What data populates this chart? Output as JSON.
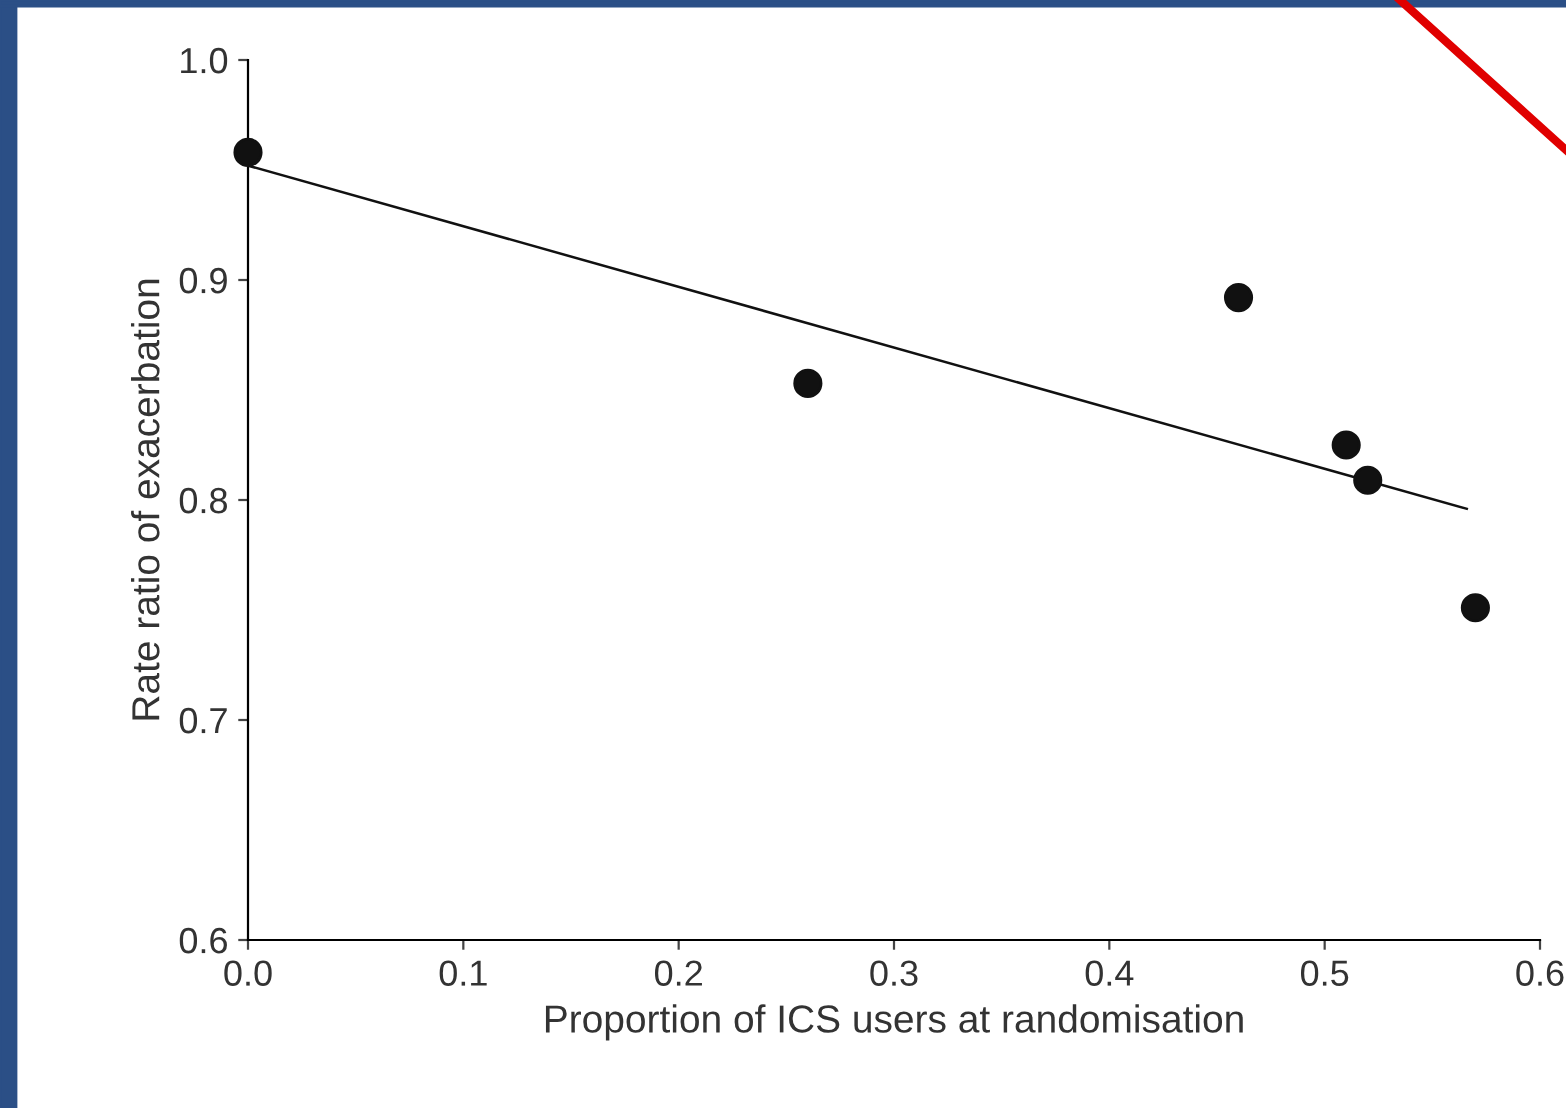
{
  "chart_data": {
    "type": "scatter",
    "xlabel": "Proportion of ICS users at randomisation",
    "ylabel": "Rate ratio of exacerbation",
    "series": [
      {
        "color": "#111111",
        "marker": "circle",
        "x": [
          0.0,
          0.26,
          0.46,
          0.51,
          0.52,
          0.57
        ],
        "values": [
          0.958,
          0.853,
          0.892,
          0.825,
          0.809,
          0.751
        ]
      },
      {
        "type": "line",
        "color": "#111111",
        "marker": "none",
        "line_style": "solid",
        "x": [
          0.0,
          0.566
        ],
        "values": [
          0.952,
          0.796
        ]
      }
    ],
    "xlim": [
      0,
      0.6
    ],
    "ylim": [
      0.6,
      1.0
    ],
    "xticks": [
      {
        "value": 0,
        "label": "0.0"
      },
      0.1,
      0.2,
      0.3,
      0.4,
      0.5,
      0.6
    ],
    "yticks": [
      {
        "value": 0.6,
        "label": "0.6"
      },
      0.7,
      0.8,
      0.9,
      {
        "value": 1.0,
        "label": "1.0"
      }
    ],
    "grid": false,
    "legend": false
  }
}
